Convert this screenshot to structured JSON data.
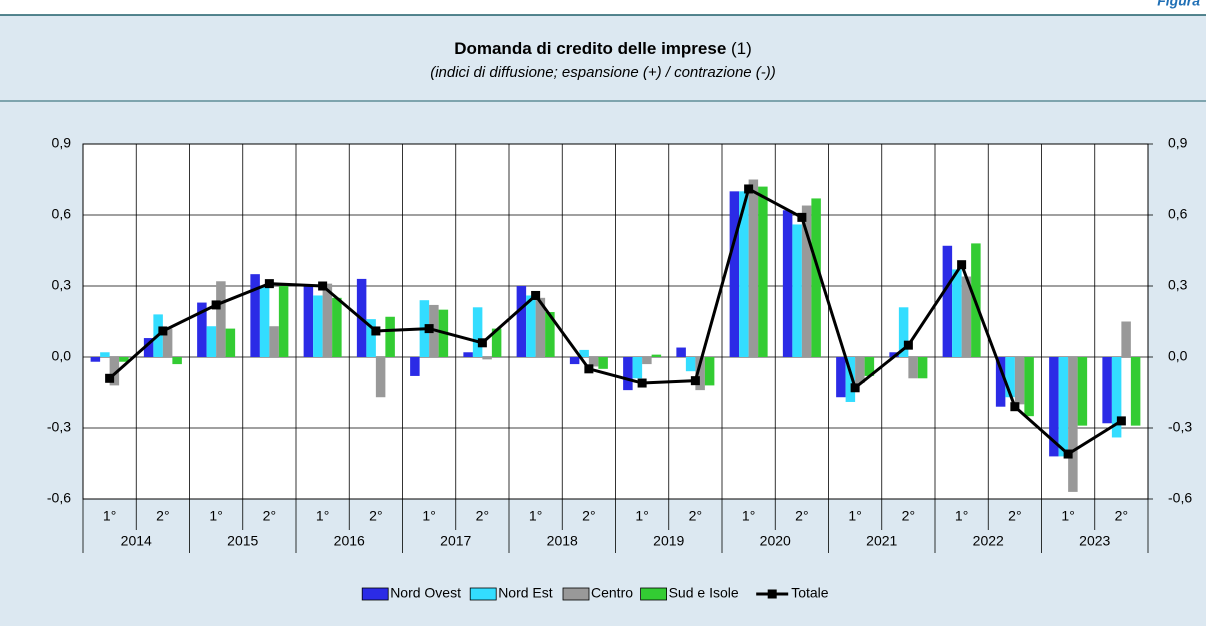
{
  "header": {
    "label": "Figura"
  },
  "chart_data": {
    "type": "bar_line",
    "title": "Domanda di credito delle imprese",
    "title_note": "(1)",
    "subtitle": "(indici di diffusione; espansione (+) / contrazione (-))",
    "categories": [
      "1°",
      "2°",
      "1°",
      "2°",
      "1°",
      "2°",
      "1°",
      "2°",
      "1°",
      "2°",
      "1°",
      "2°",
      "1°",
      "2°",
      "1°",
      "2°",
      "1°",
      "2°",
      "1°",
      "2°"
    ],
    "years": [
      "2014",
      "2015",
      "2016",
      "2017",
      "2018",
      "2019",
      "2020",
      "2021",
      "2022",
      "2023"
    ],
    "series": [
      {
        "name": "Nord Ovest",
        "color": "#2b2be6",
        "values": [
          -0.02,
          0.08,
          0.23,
          0.35,
          0.3,
          0.33,
          -0.08,
          0.02,
          0.3,
          -0.03,
          -0.14,
          0.04,
          0.7,
          0.62,
          -0.17,
          0.02,
          0.47,
          -0.21,
          -0.42,
          -0.28
        ]
      },
      {
        "name": "Nord Est",
        "color": "#33ddff",
        "values": [
          0.02,
          0.18,
          0.13,
          0.3,
          0.26,
          0.16,
          0.24,
          0.21,
          0.26,
          0.03,
          -0.09,
          -0.06,
          0.7,
          0.56,
          -0.19,
          0.21,
          0.37,
          -0.17,
          -0.42,
          -0.34
        ]
      },
      {
        "name": "Centro",
        "color": "#999999",
        "values": [
          -0.12,
          0.12,
          0.32,
          0.13,
          0.31,
          -0.17,
          0.22,
          -0.01,
          0.25,
          -0.04,
          -0.03,
          -0.14,
          0.75,
          0.64,
          -0.11,
          -0.09,
          0.34,
          -0.2,
          -0.57,
          0.15
        ]
      },
      {
        "name": "Sud e Isole",
        "color": "#33cc33",
        "values": [
          -0.02,
          -0.03,
          0.12,
          0.3,
          0.25,
          0.17,
          0.2,
          0.12,
          0.19,
          -0.05,
          0.01,
          -0.12,
          0.72,
          0.67,
          -0.08,
          -0.09,
          0.48,
          -0.25,
          -0.29,
          -0.29
        ]
      },
      {
        "name": "Totale",
        "color": "#000000",
        "type": "line",
        "values": [
          -0.09,
          0.11,
          0.22,
          0.31,
          0.3,
          0.11,
          0.12,
          0.06,
          0.26,
          -0.05,
          -0.11,
          -0.1,
          0.71,
          0.59,
          -0.13,
          0.05,
          0.39,
          -0.21,
          -0.41,
          -0.27
        ]
      }
    ],
    "ylim": [
      -0.6,
      0.9
    ],
    "yticks": [
      {
        "value": -0.6,
        "label": "-0,6"
      },
      {
        "value": -0.3,
        "label": "-0,3"
      },
      {
        "value": 0,
        "label": "0,0"
      },
      {
        "value": 0.3,
        "label": "0,3"
      },
      {
        "value": 0.6,
        "label": "0,6"
      },
      {
        "value": 0.9,
        "label": "0,9"
      }
    ],
    "y2lim": [
      -0.6,
      0.9
    ],
    "y2ticks": [
      {
        "value": -0.6,
        "label": "-0,6"
      },
      {
        "value": -0.3,
        "label": "-0,3"
      },
      {
        "value": 0,
        "label": "0,0"
      },
      {
        "value": 0.3,
        "label": "0,3"
      },
      {
        "value": 0.6,
        "label": "0,6"
      },
      {
        "value": 0.9,
        "label": "0,9"
      }
    ],
    "grid": true,
    "legend": "bottom"
  }
}
